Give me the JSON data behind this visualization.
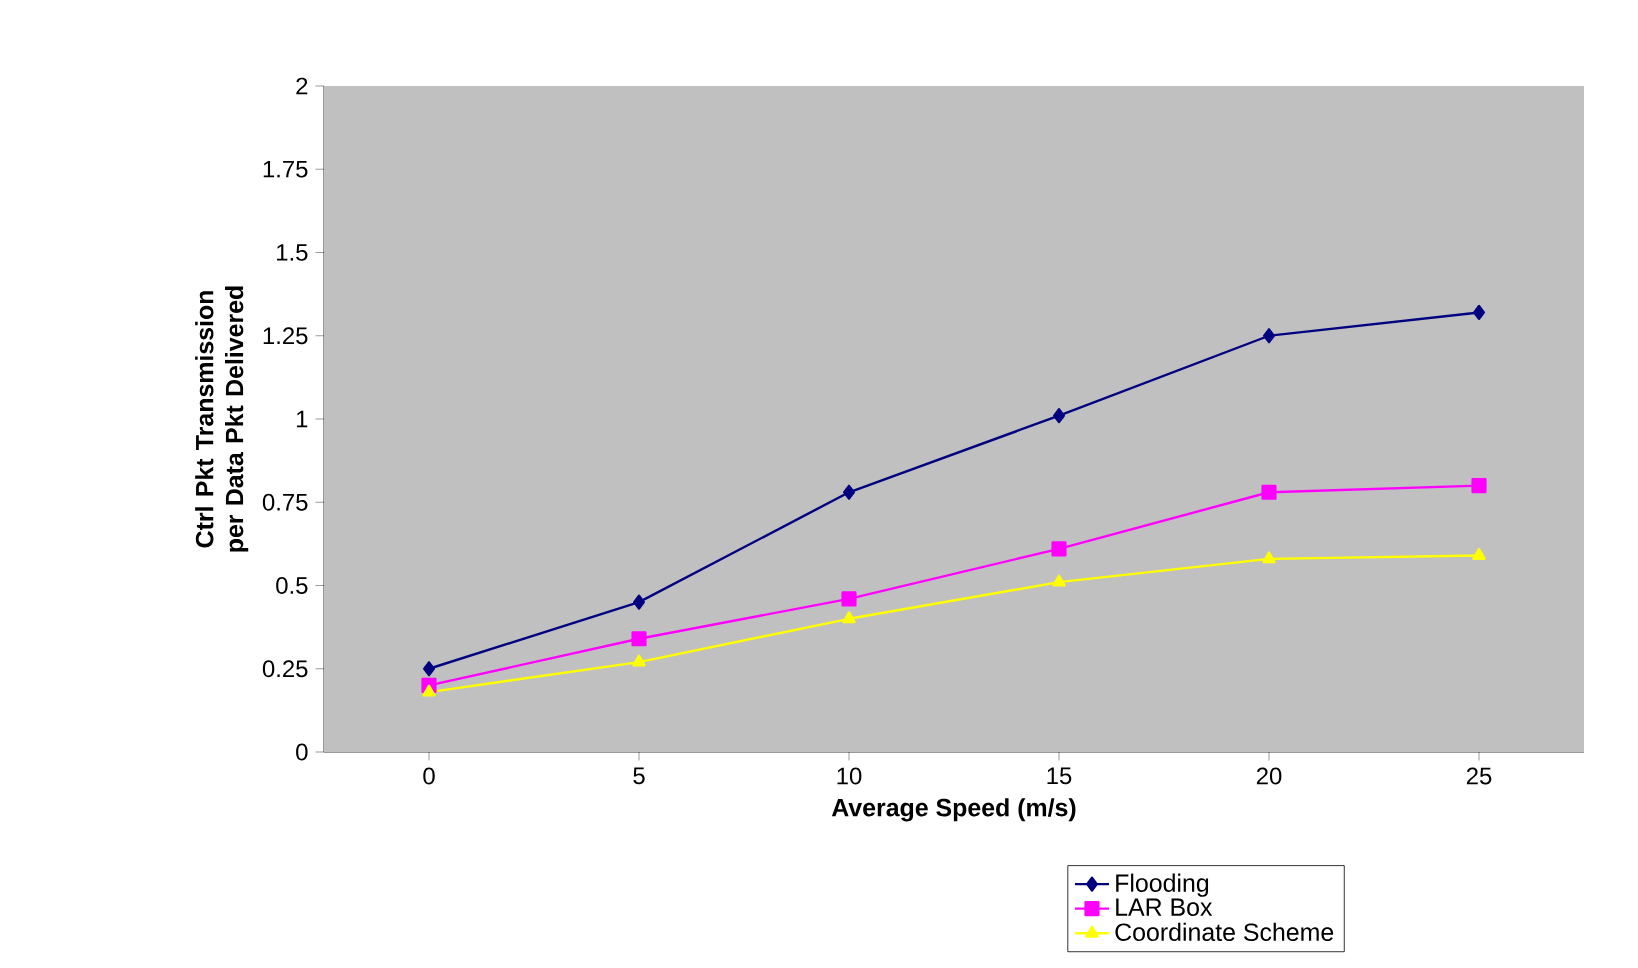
{
  "chart_data": {
    "type": "line",
    "xlabel": "Average Speed (m/s)",
    "ylabel": "Ctrl Pkt Transmission per Data Pkt Delivered",
    "categories": [
      "0",
      "5",
      "10",
      "15",
      "20",
      "25"
    ],
    "series": [
      {
        "name": "Flooding",
        "color": "#000080",
        "marker": "diamond",
        "values": [
          0.25,
          0.45,
          0.78,
          1.01,
          1.25,
          1.32
        ]
      },
      {
        "name": "LAR Box",
        "color": "#ff00ff",
        "marker": "square",
        "values": [
          0.2,
          0.34,
          0.46,
          0.61,
          0.78,
          0.8
        ]
      },
      {
        "name": "Coordinate Scheme",
        "color": "#ffff00",
        "marker": "triangle",
        "values": [
          0.18,
          0.27,
          0.4,
          0.51,
          0.58,
          0.59
        ]
      }
    ],
    "ylim": [
      0,
      2
    ],
    "yticks": [
      0,
      0.25,
      0.5,
      0.75,
      1,
      1.25,
      1.5,
      1.75,
      2
    ],
    "grid": false,
    "legend": "bottom right"
  }
}
